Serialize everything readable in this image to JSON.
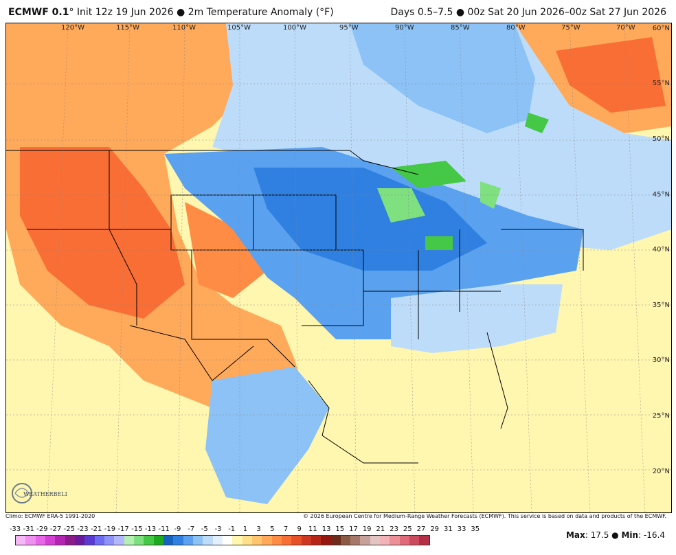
{
  "header": {
    "model": "ECMWF 0.1",
    "degree": "°",
    "init": "Init 12z 19 Jun 2026",
    "bullet": "●",
    "product": "2m Temperature Anomaly (°F)",
    "valid": "Days 0.5–7.5 ● 00z Sat 20 Jun 2026–00z Sat 27 Jun 2026"
  },
  "map": {
    "longitudes": [
      "120°W",
      "115°W",
      "110°W",
      "105°W",
      "100°W",
      "95°W",
      "90°W",
      "85°W",
      "80°W",
      "75°W",
      "70°W"
    ],
    "latitudes": [
      "60°N",
      "55°N",
      "50°N",
      "45°N",
      "40°N",
      "35°N",
      "30°N",
      "25°N",
      "20°N"
    ]
  },
  "footer": {
    "climo": "Climo: ECMWF ERA-5 1991-2020",
    "copyright": "© 2026 European Centre for Medium-Range Weather Forecasts (ECMWF). This service is based on data and products of the ECMWF.",
    "max_label": "Max",
    "max_value": "17.5",
    "min_label": "Min",
    "min_value": "-16.4",
    "sep": "●"
  },
  "logo": {
    "text": "WEATHERBELL"
  },
  "legend": {
    "labels": [
      "-33",
      "-31",
      "-29",
      "-27",
      "-25",
      "-23",
      "-21",
      "-19",
      "-17",
      "-15",
      "-13",
      "-11",
      "-9",
      "-7",
      "-5",
      "-3",
      "-1",
      "1",
      "3",
      "5",
      "7",
      "9",
      "11",
      "13",
      "15",
      "17",
      "19",
      "21",
      "23",
      "25",
      "27",
      "29",
      "31",
      "33",
      "35"
    ],
    "colors": [
      "#f6b7f6",
      "#ef8fef",
      "#e766e7",
      "#d43fd4",
      "#b324b3",
      "#8b1a8b",
      "#6a1a9c",
      "#5a3bd0",
      "#6e6cf0",
      "#8f93f7",
      "#b3b7fb",
      "#b4f0b4",
      "#7fe07f",
      "#45c845",
      "#1ea91e",
      "#1565c0",
      "#2f80e0",
      "#5aa2ef",
      "#8cc2f6",
      "#bddcf9",
      "#e3f0fb",
      "#ffffff",
      "#fff6b0",
      "#ffe08a",
      "#ffc46e",
      "#ffa95a",
      "#ff8c45",
      "#f86e35",
      "#e85028",
      "#cf3820",
      "#b52618",
      "#93170f",
      "#6e2a1a",
      "#8a5a44",
      "#a5786a",
      "#c6a19a",
      "#e4c4c2",
      "#f2b3b8",
      "#ec8f97",
      "#e0697a",
      "#cc4a5e",
      "#b22f45"
    ]
  }
}
